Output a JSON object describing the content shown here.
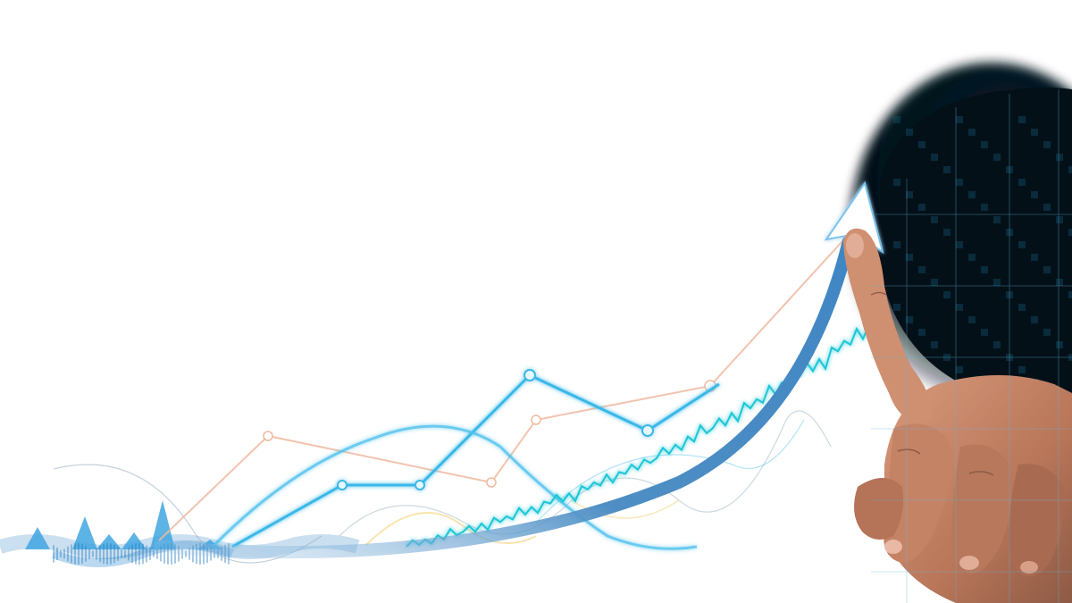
{
  "image": {
    "colors": {
      "background": "#ffffff",
      "arrow": "#5d96c6",
      "arrow_head": "#ffffff",
      "line_blue": "#3ab8e8",
      "line_cyan": "#1fc6d6",
      "line_peach": "#f0b9a0",
      "line_gold": "#f3d27a",
      "line_gray": "#9ab3c4",
      "wave_blue": "#2a7ec0",
      "screen_dark": "#041018",
      "grid_glow": "#1a6a8e",
      "skin": "#c98a6c",
      "skin_shadow": "#8d5a45",
      "nail": "#e9b9a6"
    }
  }
}
